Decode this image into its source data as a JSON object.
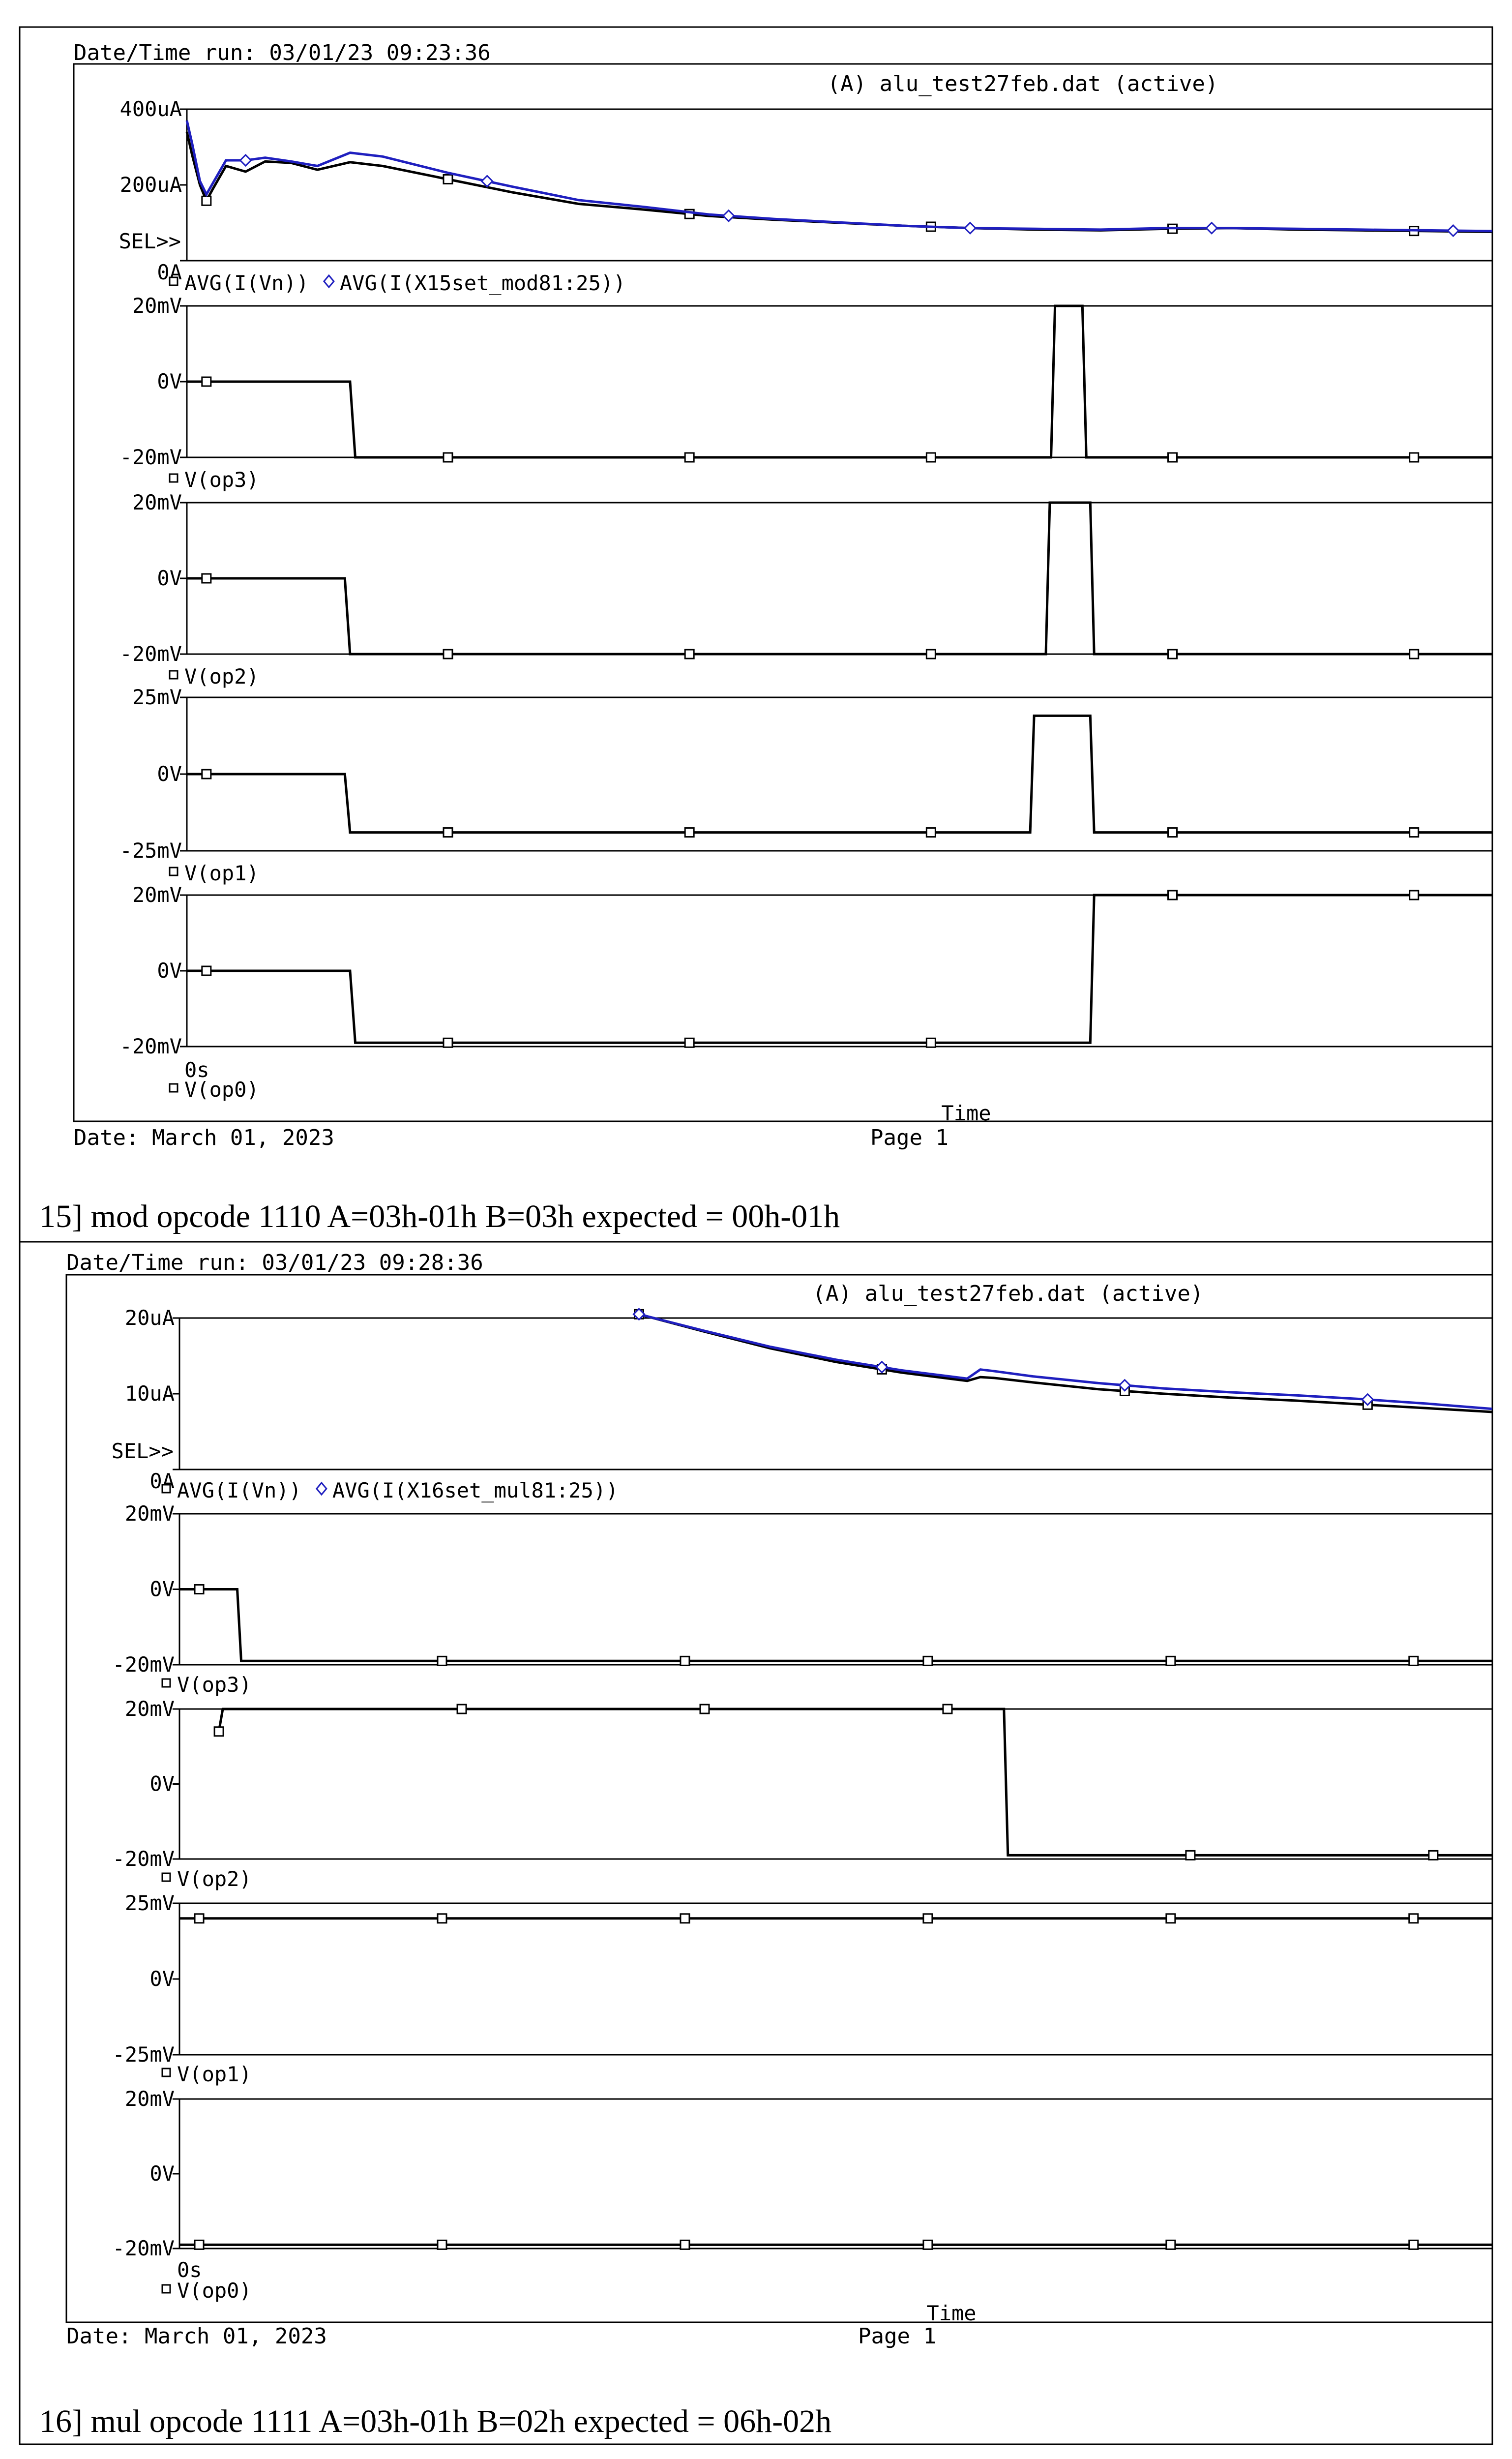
{
  "sections": [
    {
      "date_time_run": "Date/Time run: 03/01/23 09:23:36",
      "header_title": "(A) alu_test27feb.dat (active)",
      "sel_label": "SEL>>",
      "x_axis_start": "0s",
      "x_axis_label": "Time",
      "date_footer": "Date: March 01, 2023",
      "page_footer": "Page 1",
      "caption": "15]   mod opcode 1110 A=03h-01h B=03h expected = 00h-01h",
      "plots": [
        {
          "y_ticks": [
            "400uA",
            "200uA",
            "0A"
          ],
          "ylim": [
            0,
            400
          ],
          "legend": [
            {
              "marker": "square",
              "text": "AVG(I(Vn))",
              "color": "#000000"
            },
            {
              "marker": "diamond",
              "text": "AVG(I(X15set_mod81:25))",
              "color": "#1f1fbf"
            }
          ],
          "series": [
            {
              "name": "AVG(I(Vn))",
              "color": "#000000",
              "marker": "square",
              "x": [
                0,
                0.4,
                1,
                1.5,
                2,
                3,
                4.5,
                6,
                8,
                10,
                12.5,
                15,
                20,
                25,
                30,
                35,
                40,
                45,
                50,
                55,
                60,
                65,
                70,
                75,
                80,
                85,
                90,
                95,
                100
              ],
              "y": [
                340,
                280,
                200,
                158,
                190,
                250,
                235,
                262,
                258,
                240,
                260,
                250,
                215,
                180,
                150,
                135,
                118,
                108,
                100,
                92,
                86,
                82,
                80,
                84,
                86,
                82,
                80,
                78,
                76
              ]
            },
            {
              "name": "AVG(I(X15set_mod81:25))",
              "color": "#1f1fbf",
              "marker": "diamond",
              "x": [
                0,
                0.4,
                1,
                1.5,
                2,
                3,
                4.5,
                6,
                8,
                10,
                12.5,
                15,
                20,
                25,
                30,
                35,
                40,
                45,
                50,
                55,
                60,
                65,
                70,
                75,
                80,
                85,
                90,
                95,
                100
              ],
              "y": [
                370,
                310,
                210,
                175,
                205,
                265,
                265,
                272,
                262,
                250,
                285,
                275,
                232,
                195,
                160,
                142,
                122,
                110,
                101,
                92,
                86,
                84,
                82,
                86,
                86,
                84,
                82,
                80,
                78
              ]
            }
          ]
        },
        {
          "y_ticks": [
            "20mV",
            "0V",
            "-20mV"
          ],
          "ylim": [
            -20,
            20
          ],
          "legend": [
            {
              "marker": "square",
              "text": "V(op3)",
              "color": "#000000"
            }
          ],
          "series": [
            {
              "name": "V(op3)",
              "color": "#000000",
              "marker": "square",
              "x": [
                0,
                12.5,
                12.9,
                66.2,
                66.5,
                68.6,
                68.9,
                100
              ],
              "y": [
                0,
                0,
                -20,
                -20,
                20,
                20,
                -20,
                -20
              ]
            }
          ]
        },
        {
          "y_ticks": [
            "20mV",
            "0V",
            "-20mV"
          ],
          "ylim": [
            -20,
            20
          ],
          "legend": [
            {
              "marker": "square",
              "text": "V(op2)",
              "color": "#000000"
            }
          ],
          "series": [
            {
              "name": "V(op2)",
              "color": "#000000",
              "marker": "square",
              "x": [
                0,
                12.1,
                12.5,
                65.8,
                66.1,
                69.2,
                69.5,
                100
              ],
              "y": [
                0,
                0,
                -20,
                -20,
                20,
                20,
                -20,
                -20
              ]
            }
          ]
        },
        {
          "y_ticks": [
            "25mV",
            "0V",
            "-25mV"
          ],
          "ylim": [
            -25,
            25
          ],
          "legend": [
            {
              "marker": "square",
              "text": "V(op1)",
              "color": "#000000"
            }
          ],
          "series": [
            {
              "name": "V(op1)",
              "color": "#000000",
              "marker": "square",
              "x": [
                0,
                12.1,
                12.5,
                64.6,
                64.9,
                69.2,
                69.5,
                100
              ],
              "y": [
                0,
                0,
                -19,
                -19,
                19,
                19,
                -19,
                -19
              ]
            }
          ]
        },
        {
          "y_ticks": [
            "20mV",
            "0V",
            "-20mV"
          ],
          "ylim": [
            -20,
            20
          ],
          "legend": [
            {
              "marker": "square",
              "text": "V(op0)",
              "color": "#000000"
            }
          ],
          "series": [
            {
              "name": "V(op0)",
              "color": "#000000",
              "marker": "square",
              "x": [
                0,
                12.5,
                12.9,
                69.2,
                69.5,
                100
              ],
              "y": [
                0,
                0,
                -19,
                -19,
                20,
                20
              ]
            }
          ]
        }
      ]
    },
    {
      "date_time_run": "Date/Time run: 03/01/23 09:28:36",
      "header_title": "(A) alu_test27feb.dat (active)",
      "sel_label": "SEL>>",
      "x_axis_start": "0s",
      "x_axis_label": "Time",
      "date_footer": "Date: March 01, 2023",
      "page_footer": "Page 1",
      "caption": "16]   mul opcode 1111 A=03h-01h B=02h expected = 06h-02h",
      "plots": [
        {
          "y_ticks": [
            "20uA",
            "10uA",
            "0A"
          ],
          "ylim": [
            0,
            20
          ],
          "legend": [
            {
              "marker": "square",
              "text": "AVG(I(Vn))",
              "color": "#000000"
            },
            {
              "marker": "diamond",
              "text": "AVG(I(X16set_mul81:25))",
              "color": "#1f1fbf"
            }
          ],
          "series": [
            {
              "name": "AVG(I(Vn))",
              "color": "#000000",
              "marker": "square",
              "x": [
                35,
                40,
                45,
                50,
                55,
                60,
                61,
                62,
                65,
                70,
                75,
                80,
                85,
                90,
                95,
                100
              ],
              "y": [
                20.5,
                18.2,
                16.0,
                14.2,
                12.8,
                11.7,
                12.2,
                12.1,
                11.5,
                10.6,
                10.0,
                9.5,
                9.1,
                8.6,
                8.1,
                7.6
              ]
            },
            {
              "name": "AVG(I(X16set_mul81:25))",
              "color": "#1f1fbf",
              "marker": "diamond",
              "x": [
                35,
                40,
                45,
                50,
                55,
                60,
                61,
                62,
                65,
                70,
                75,
                80,
                85,
                90,
                95,
                100
              ],
              "y": [
                20.5,
                18.3,
                16.2,
                14.5,
                13.1,
                12.0,
                13.2,
                13.0,
                12.3,
                11.4,
                10.7,
                10.2,
                9.8,
                9.3,
                8.7,
                8.0
              ]
            }
          ]
        },
        {
          "y_ticks": [
            "20mV",
            "0V",
            "-20mV"
          ],
          "ylim": [
            -20,
            20
          ],
          "legend": [
            {
              "marker": "square",
              "text": "V(op3)",
              "color": "#000000"
            }
          ],
          "series": [
            {
              "name": "V(op3)",
              "color": "#000000",
              "marker": "square",
              "x": [
                0,
                4.4,
                4.7,
                100
              ],
              "y": [
                0,
                0,
                -19,
                -19
              ]
            }
          ]
        },
        {
          "y_ticks": [
            "20mV",
            "0V",
            "-20mV"
          ],
          "ylim": [
            -20,
            20
          ],
          "legend": [
            {
              "marker": "square",
              "text": "V(op2)",
              "color": "#000000"
            }
          ],
          "series": [
            {
              "name": "V(op2)",
              "color": "#000000",
              "marker": "square",
              "x": [
                3.0,
                3.2,
                3.3,
                62.8,
                63.1,
                100
              ],
              "y": [
                14,
                18,
                20,
                20,
                -19,
                -19
              ]
            }
          ]
        },
        {
          "y_ticks": [
            "25mV",
            "0V",
            "-25mV"
          ],
          "ylim": [
            -25,
            25
          ],
          "legend": [
            {
              "marker": "square",
              "text": "V(op1)",
              "color": "#000000"
            }
          ],
          "series": [
            {
              "name": "V(op1)",
              "color": "#000000",
              "marker": "square",
              "x": [
                0,
                100
              ],
              "y": [
                20,
                20
              ]
            }
          ]
        },
        {
          "y_ticks": [
            "20mV",
            "0V",
            "-20mV"
          ],
          "ylim": [
            -20,
            20
          ],
          "legend": [
            {
              "marker": "square",
              "text": "V(op0)",
              "color": "#000000"
            }
          ],
          "series": [
            {
              "name": "V(op0)",
              "color": "#000000",
              "marker": "square",
              "x": [
                0,
                100
              ],
              "y": [
                -19,
                -19
              ]
            }
          ]
        }
      ]
    }
  ],
  "chart_data": [
    {
      "type": "line",
      "title": "(A) alu_test27feb.dat (active)",
      "xlabel": "Time",
      "x_axis_start": "0s",
      "panels": [
        {
          "ylabel_ticks": [
            "400uA",
            "200uA",
            "0A"
          ],
          "ylim": [
            0,
            400
          ],
          "series_names": [
            "AVG(I(Vn))",
            "AVG(I(X15set_mod81:25))"
          ]
        },
        {
          "ylabel_ticks": [
            "20mV",
            "0V",
            "-20mV"
          ],
          "ylim": [
            -20,
            20
          ],
          "series_names": [
            "V(op3)"
          ]
        },
        {
          "ylabel_ticks": [
            "20mV",
            "0V",
            "-20mV"
          ],
          "ylim": [
            -20,
            20
          ],
          "series_names": [
            "V(op2)"
          ]
        },
        {
          "ylabel_ticks": [
            "25mV",
            "0V",
            "-25mV"
          ],
          "ylim": [
            -25,
            25
          ],
          "series_names": [
            "V(op1)"
          ]
        },
        {
          "ylabel_ticks": [
            "20mV",
            "0V",
            "-20mV"
          ],
          "ylim": [
            -20,
            20
          ],
          "series_names": [
            "V(op0)"
          ]
        }
      ],
      "grid": false
    },
    {
      "type": "line",
      "title": "(A) alu_test27feb.dat (active)",
      "xlabel": "Time",
      "x_axis_start": "0s",
      "panels": [
        {
          "ylabel_ticks": [
            "20uA",
            "10uA",
            "0A"
          ],
          "ylim": [
            0,
            20
          ],
          "series_names": [
            "AVG(I(Vn))",
            "AVG(I(X16set_mul81:25))"
          ]
        },
        {
          "ylabel_ticks": [
            "20mV",
            "0V",
            "-20mV"
          ],
          "ylim": [
            -20,
            20
          ],
          "series_names": [
            "V(op3)"
          ]
        },
        {
          "ylabel_ticks": [
            "20mV",
            "0V",
            "-20mV"
          ],
          "ylim": [
            -20,
            20
          ],
          "series_names": [
            "V(op2)"
          ]
        },
        {
          "ylabel_ticks": [
            "25mV",
            "0V",
            "-25mV"
          ],
          "ylim": [
            -25,
            25
          ],
          "series_names": [
            "V(op1)"
          ]
        },
        {
          "ylabel_ticks": [
            "20mV",
            "0V",
            "-20mV"
          ],
          "ylim": [
            -20,
            20
          ],
          "series_names": [
            "V(op0)"
          ]
        }
      ],
      "grid": false
    }
  ]
}
